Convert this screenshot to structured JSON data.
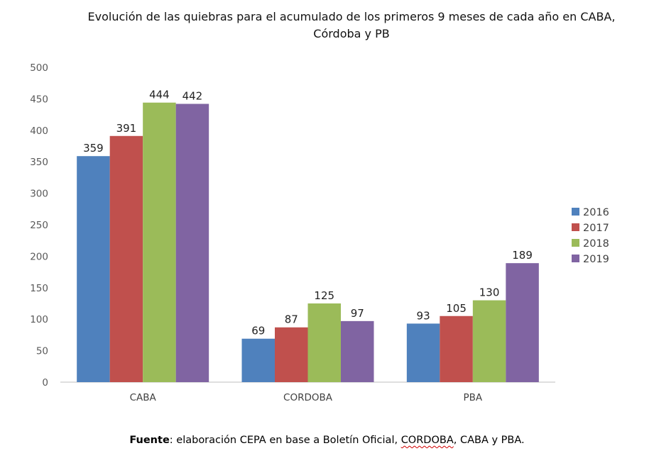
{
  "chart_data": {
    "type": "bar",
    "title_line1": "Evolución de las quiebras para el acumulado de los primeros 9 meses de cada año en CABA,",
    "title_line2": "Córdoba y PB",
    "categories": [
      "CABA",
      "CORDOBA",
      "PBA"
    ],
    "series": [
      {
        "name": "2016",
        "color": "#4f81bd",
        "values": [
          359,
          69,
          93
        ]
      },
      {
        "name": "2017",
        "color": "#c0504d",
        "values": [
          391,
          87,
          105
        ]
      },
      {
        "name": "2018",
        "color": "#9bbb59",
        "values": [
          444,
          125,
          130
        ]
      },
      {
        "name": "2019",
        "color": "#8064a2",
        "values": [
          442,
          97,
          189
        ]
      }
    ],
    "ylim": [
      0,
      500
    ],
    "yticks": [
      0,
      50,
      100,
      150,
      200,
      250,
      300,
      350,
      400,
      450,
      500
    ],
    "grid": false,
    "legend_position": "right"
  },
  "source_note": {
    "label": "Fuente",
    "text_before": ": elaboración CEPA en base a Boletín Oficial, ",
    "underlined": "CORDOBA",
    "text_after": ", CABA y PBA."
  }
}
